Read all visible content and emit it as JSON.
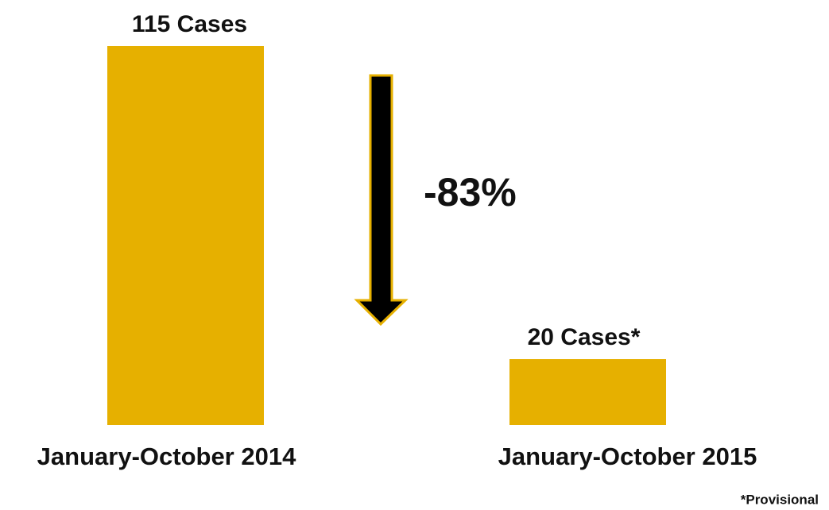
{
  "chart_data": {
    "type": "bar",
    "categories": [
      "January-October 2014",
      "January-October 2015"
    ],
    "values": [
      115,
      20
    ],
    "value_labels": [
      "115 Cases",
      "20 Cases*"
    ],
    "color": "#e6b000",
    "annotation": "-83%",
    "note": "*Provisional"
  }
}
